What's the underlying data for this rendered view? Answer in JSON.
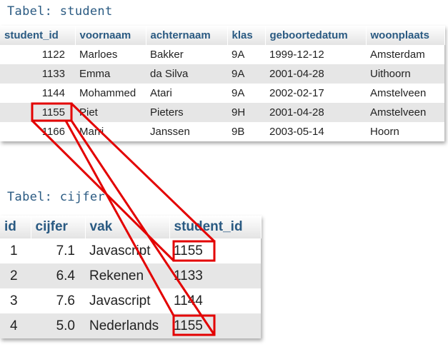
{
  "student": {
    "caption": "Tabel: student",
    "headers": [
      "student_id",
      "voornaam",
      "achternaam",
      "klas",
      "geboortedatum",
      "woonplaats"
    ],
    "rows": [
      [
        "1122",
        "Marloes",
        "Bakker",
        "9A",
        "1999-12-12",
        "Amsterdam"
      ],
      [
        "1133",
        "Emma",
        "da Silva",
        "9A",
        "2001-04-28",
        "Uithoorn"
      ],
      [
        "1144",
        "Mohammed",
        "Atari",
        "9A",
        "2002-02-17",
        "Amstelveen"
      ],
      [
        "1155",
        "Piet",
        "Pieters",
        "9H",
        "2001-04-28",
        "Amstelveen"
      ],
      [
        "1166",
        "Marri",
        "Janssen",
        "9B",
        "2003-05-14",
        "Hoorn"
      ]
    ]
  },
  "cijfer": {
    "caption": "Tabel: cijfer",
    "headers": [
      "id",
      "cijfer",
      "vak",
      "student_id"
    ],
    "rows": [
      [
        "1",
        "7.1",
        "Javascript",
        "1155"
      ],
      [
        "2",
        "6.4",
        "Rekenen",
        "1133"
      ],
      [
        "3",
        "7.6",
        "Javascript",
        "1144"
      ],
      [
        "4",
        "5.0",
        "Nederlands",
        "1155"
      ]
    ]
  },
  "highlight_color": "#e30000"
}
